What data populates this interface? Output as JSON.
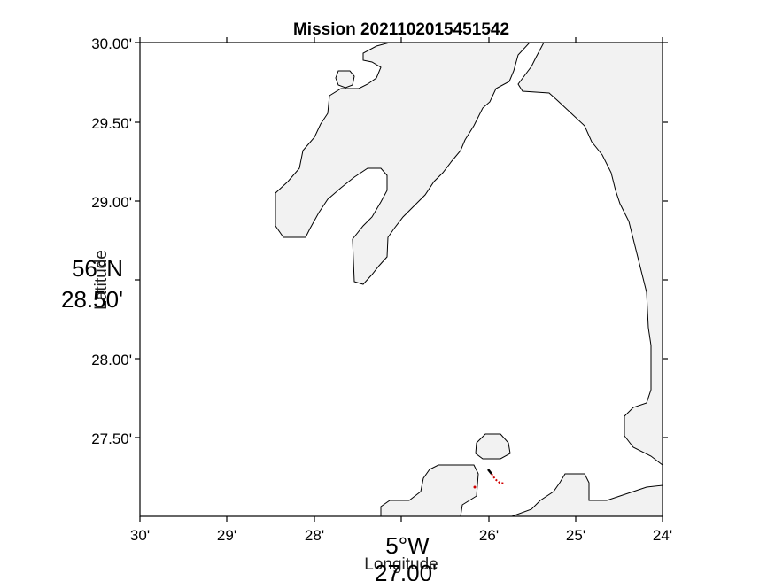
{
  "title": "Mission 2021102015451542",
  "colors": {
    "land_fill": "#f2f2f2",
    "coastline": "#000000",
    "track_black": "#000000",
    "track_red": "#d00000"
  },
  "axes": {
    "xlabel": "Longitude",
    "ylabel": "Latitude",
    "x_center_line1": "5°W",
    "x_center_line2": "27.00'",
    "y_center_line1": "56°N",
    "y_center_line2": "28.50'",
    "x_ticks": [
      "30'",
      "29'",
      "28'",
      "27'",
      "26'",
      "25'",
      "24'"
    ],
    "y_ticks": [
      "30.00'",
      "29.50'",
      "29.00'",
      "28.50'",
      "28.00'",
      "27.50'"
    ]
  }
}
